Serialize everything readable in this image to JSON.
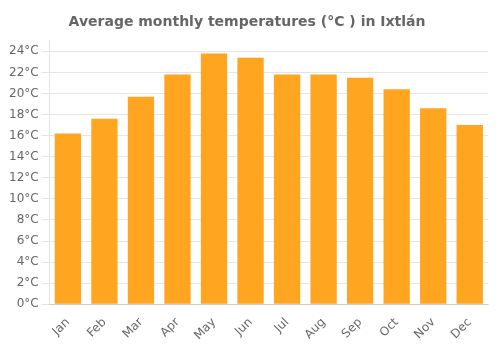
{
  "chart_data": {
    "type": "bar",
    "title": "Average monthly temperatures (°C ) in Ixtlán",
    "categories": [
      "Jan",
      "Feb",
      "Mar",
      "Apr",
      "May",
      "Jun",
      "Jul",
      "Aug",
      "Sep",
      "Oct",
      "Nov",
      "Dec"
    ],
    "values": [
      16.2,
      17.6,
      19.7,
      21.8,
      23.8,
      23.4,
      21.8,
      21.8,
      21.5,
      20.4,
      18.6,
      17.0
    ],
    "color": "#FFA520",
    "ylim": [
      0,
      25
    ],
    "yticks": [
      {
        "value": 0,
        "label": "0°C"
      },
      {
        "value": 2,
        "label": "2°C"
      },
      {
        "value": 4,
        "label": "4°C"
      },
      {
        "value": 6,
        "label": "6°C"
      },
      {
        "value": 8,
        "label": "8°C"
      },
      {
        "value": 10,
        "label": "10°C"
      },
      {
        "value": 12,
        "label": "12°C"
      },
      {
        "value": 14,
        "label": "14°C"
      },
      {
        "value": 16,
        "label": "16°C"
      },
      {
        "value": 18,
        "label": "18°C"
      },
      {
        "value": 20,
        "label": "20°C"
      },
      {
        "value": 22,
        "label": "22°C"
      },
      {
        "value": 24,
        "label": "24°C"
      }
    ],
    "grid": true
  }
}
